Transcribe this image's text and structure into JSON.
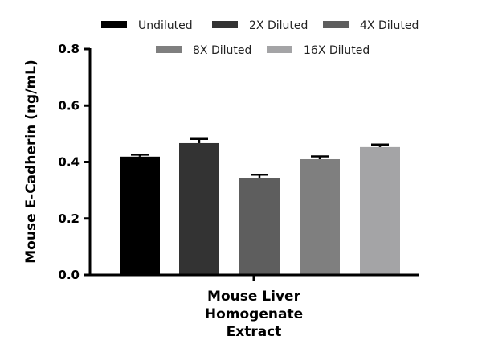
{
  "chart_data": {
    "type": "bar",
    "categories": [
      "Mouse Liver Homogenate Extract"
    ],
    "xlabel_lines": [
      "Mouse Liver",
      "Homogenate",
      "Extract"
    ],
    "ylabel": "Mouse E-Cadherin (ng/mL)",
    "ylim": [
      0,
      0.8
    ],
    "yticks": [
      "0.0",
      "0.2",
      "0.4",
      "0.6",
      "0.8"
    ],
    "grid": false,
    "legend_position": "top",
    "series": [
      {
        "name": "Undiluted",
        "values": [
          0.419
        ],
        "error": [
          0.007
        ],
        "color": "#000000"
      },
      {
        "name": "2X Diluted",
        "values": [
          0.467
        ],
        "error": [
          0.015
        ],
        "color": "#333333"
      },
      {
        "name": "4X Diluted",
        "values": [
          0.344
        ],
        "error": [
          0.011
        ],
        "color": "#5e5e5e"
      },
      {
        "name": "8X Diluted",
        "values": [
          0.41
        ],
        "error": [
          0.01
        ],
        "color": "#7f7f7f"
      },
      {
        "name": "16X Diluted",
        "values": [
          0.453
        ],
        "error": [
          0.009
        ],
        "color": "#a4a4a6"
      }
    ]
  }
}
